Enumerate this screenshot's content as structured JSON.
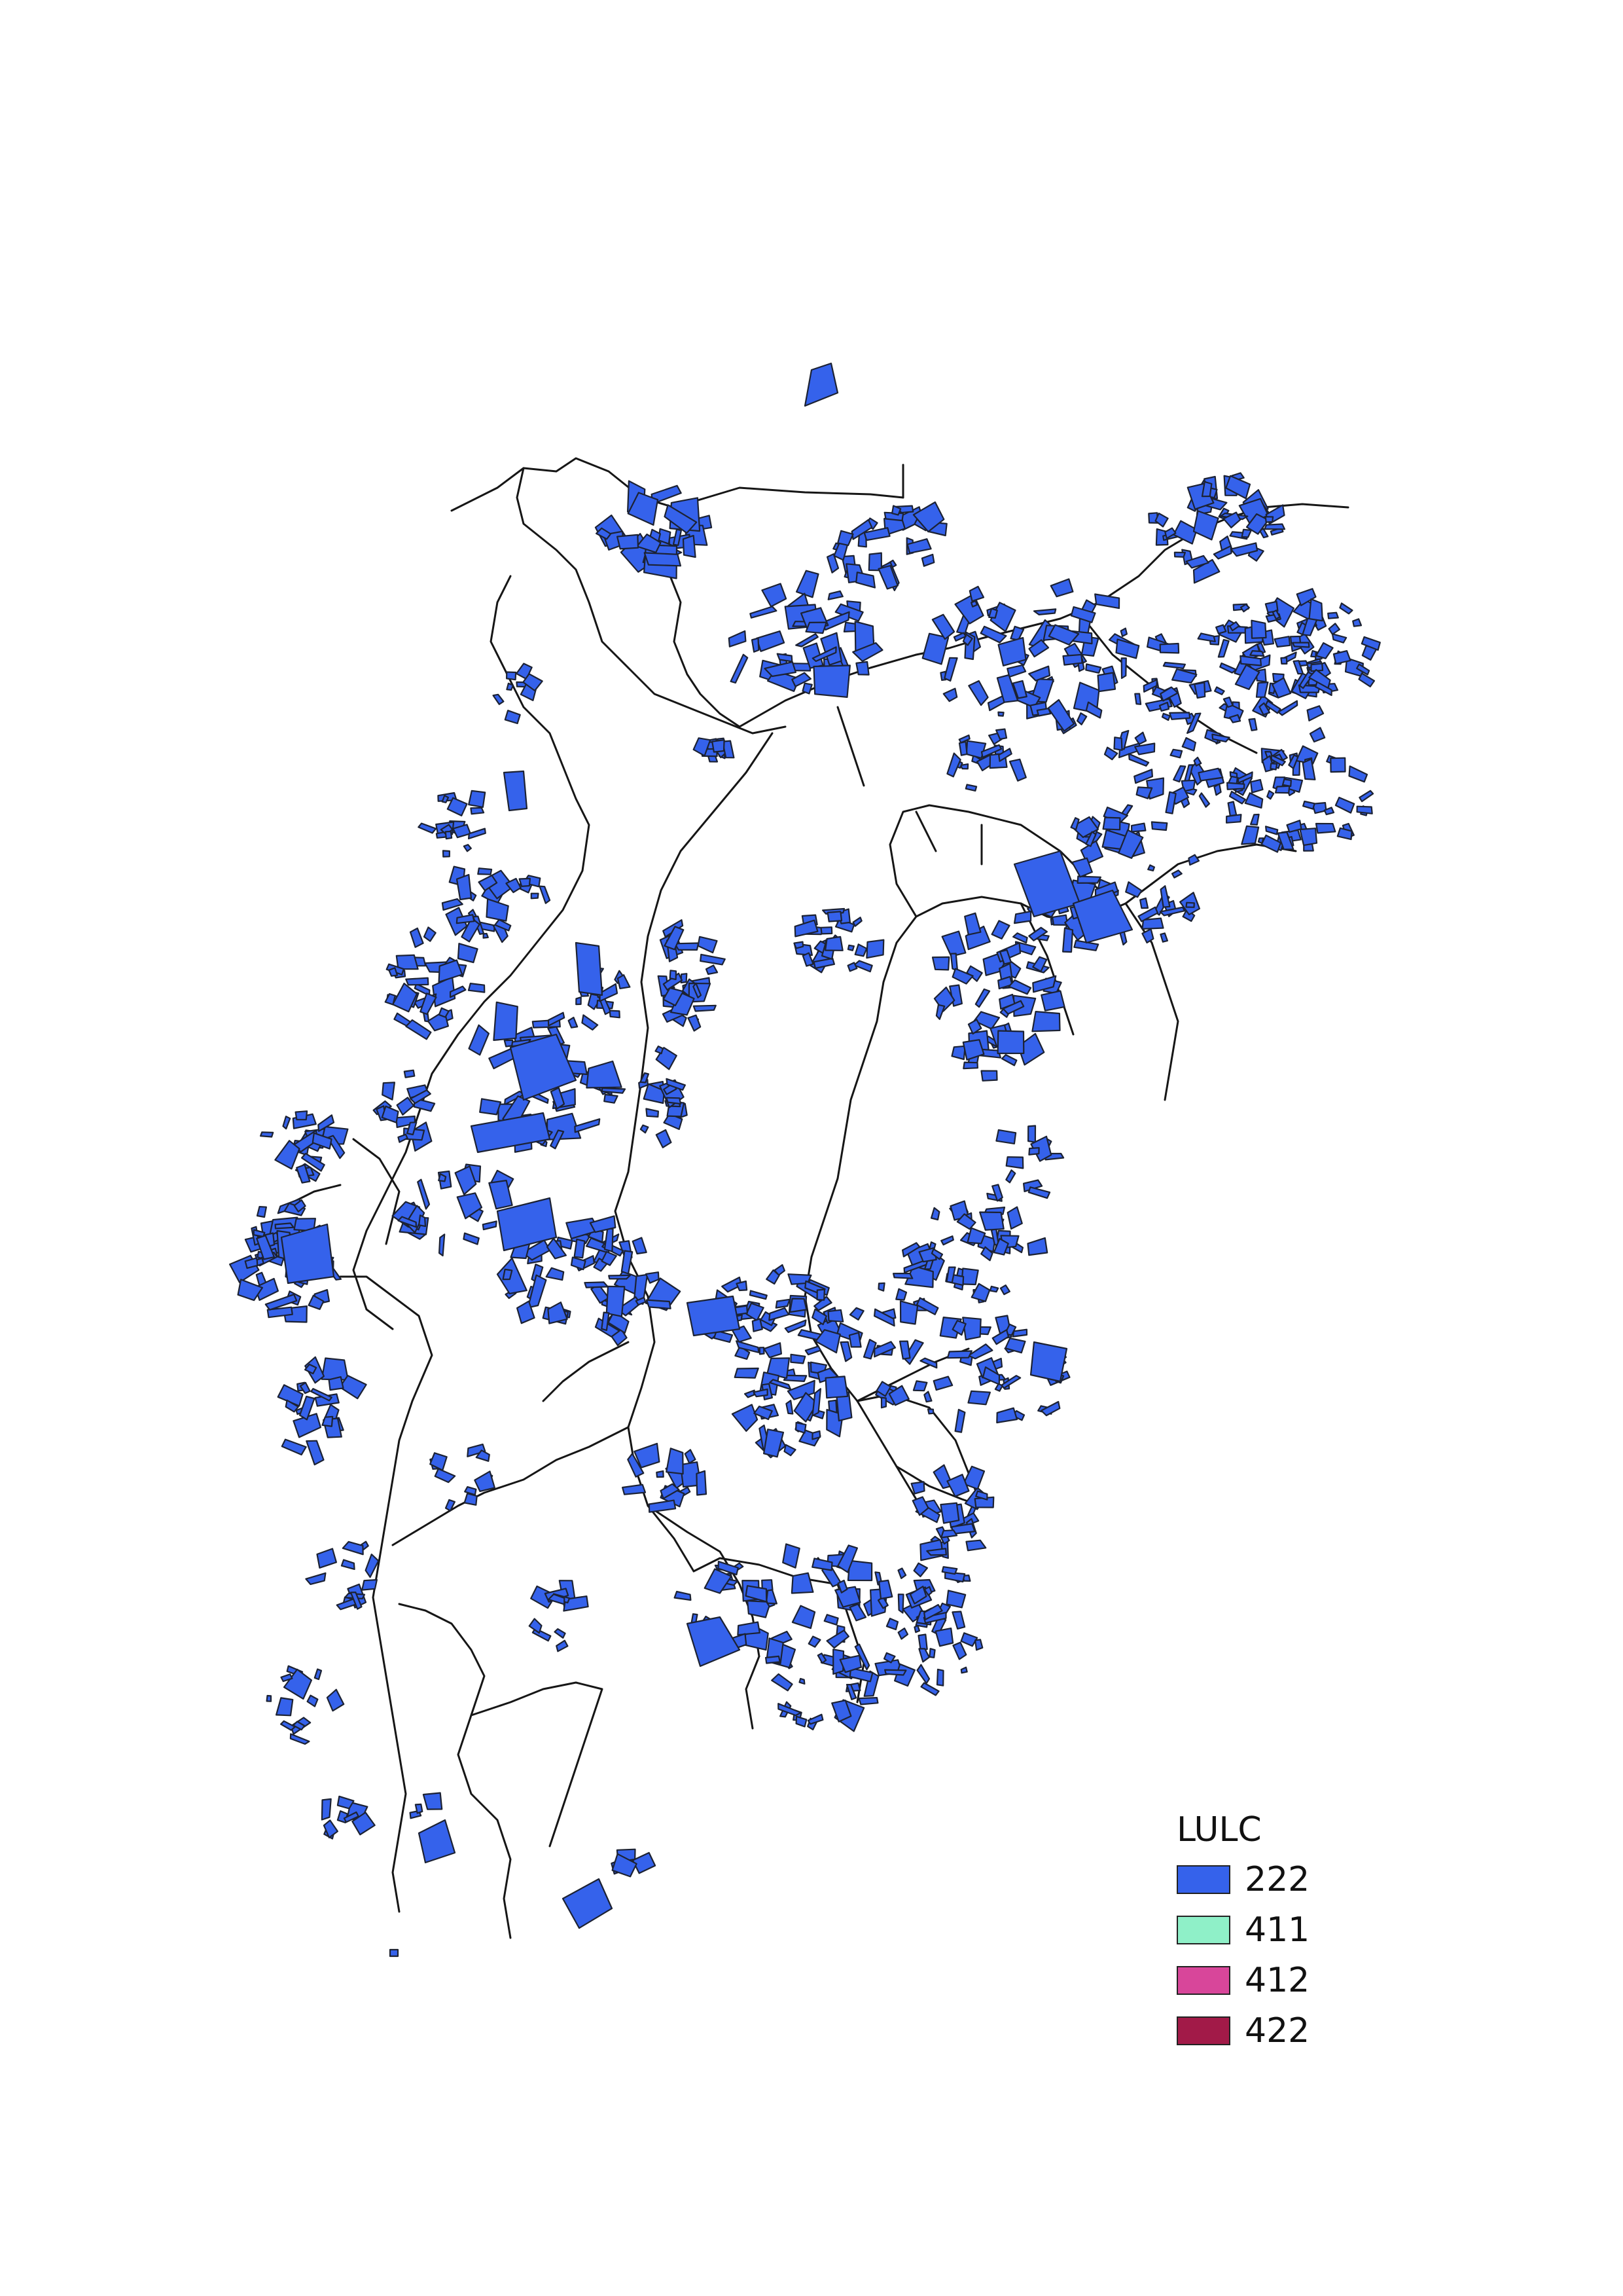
{
  "legend": {
    "title": "LULC",
    "items": [
      {
        "label": "222",
        "color": "#3562eb"
      },
      {
        "label": "411",
        "color": "#8ff0c8"
      },
      {
        "label": "412",
        "color": "#d8469a"
      },
      {
        "label": "422",
        "color": "#a21a48"
      }
    ]
  },
  "colors": {
    "parcel_fill": "#3562eb",
    "parcel_stroke": "#1c2233",
    "road": "#161616",
    "background": "#ffffff"
  }
}
